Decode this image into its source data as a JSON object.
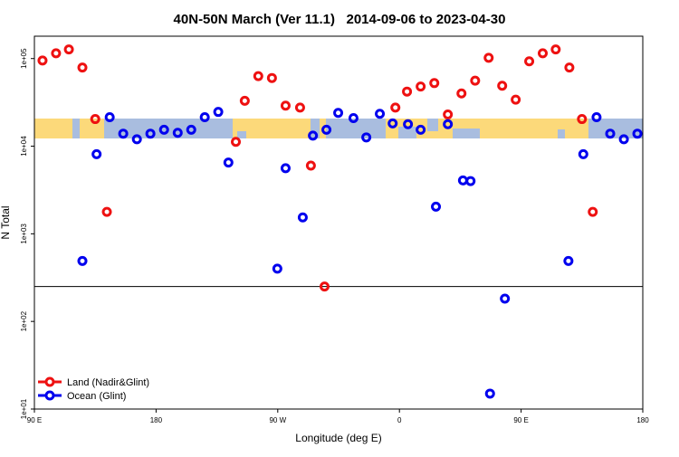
{
  "chart_data": {
    "type": "scatter",
    "title": "40N-50N March (Ver 11.1)   2014-09-06 to 2023-04-30",
    "xlabel": "Longitude (deg E)",
    "ylabel": "N Total",
    "xlim": [
      90,
      540
    ],
    "xticks": [
      {
        "value": 90,
        "label": "90 E"
      },
      180,
      {
        "value": 270,
        "label": "90 W"
      },
      {
        "value": 360,
        "label": "0"
      },
      {
        "value": 450,
        "label": "90 E"
      },
      {
        "value": 540,
        "label": "180"
      }
    ],
    "ylim": [
      10,
      180000
    ],
    "log_y": true,
    "yticks": [
      {
        "value": 10,
        "label": "1e+01"
      },
      {
        "value": 100,
        "label": "1e+02"
      },
      {
        "value": 1000,
        "label": "1e+03"
      },
      {
        "value": 10000,
        "label": "1e+04"
      },
      {
        "value": 100000,
        "label": "1e+05"
      }
    ],
    "hline": 250,
    "legend": "bottom-left",
    "series": [
      {
        "name": "Land (Nadir&Glint)",
        "color": "#ee1111",
        "x": [
          96,
          106,
          115.5,
          125.5,
          135,
          143.6,
          239,
          245.6,
          255.6,
          265.7,
          275.8,
          286.5,
          294.5,
          304.6,
          357,
          365.6,
          375.7,
          385.8,
          395.8,
          405.9,
          416,
          426,
          436,
          446,
          456,
          466,
          475.6,
          485.7,
          495,
          503
        ],
        "values": [
          95000,
          115000,
          127000,
          79000,
          20400,
          1780,
          11200,
          33000,
          63000,
          60000,
          29000,
          27600,
          6000,
          250,
          27600,
          42000,
          48000,
          52500,
          23000,
          40000,
          56000,
          102000,
          49000,
          34000,
          93000,
          115000,
          127000,
          79000,
          20400,
          1780
        ]
      },
      {
        "name": "Ocean (Glint)",
        "color": "#0000ee",
        "x": [
          125.5,
          136,
          145.7,
          155.7,
          165.8,
          175.8,
          185.9,
          196,
          206,
          216,
          226,
          233.5,
          269.7,
          275.8,
          288.5,
          296,
          306,
          314.7,
          326,
          335.5,
          345.5,
          355,
          366.3,
          375.7,
          387,
          395.8,
          407,
          412.6,
          427,
          438,
          485,
          496,
          505.8,
          515.9,
          526,
          536
        ],
        "values": [
          490,
          8100,
          21400,
          13900,
          12000,
          13900,
          15400,
          14200,
          15400,
          21400,
          24600,
          6500,
          400,
          5600,
          1540,
          13200,
          15400,
          24000,
          20900,
          12600,
          23400,
          18200,
          17800,
          15400,
          2040,
          17800,
          4070,
          4000,
          15,
          182,
          490,
          8100,
          21400,
          13900,
          12000,
          13900
        ]
      }
    ]
  }
}
